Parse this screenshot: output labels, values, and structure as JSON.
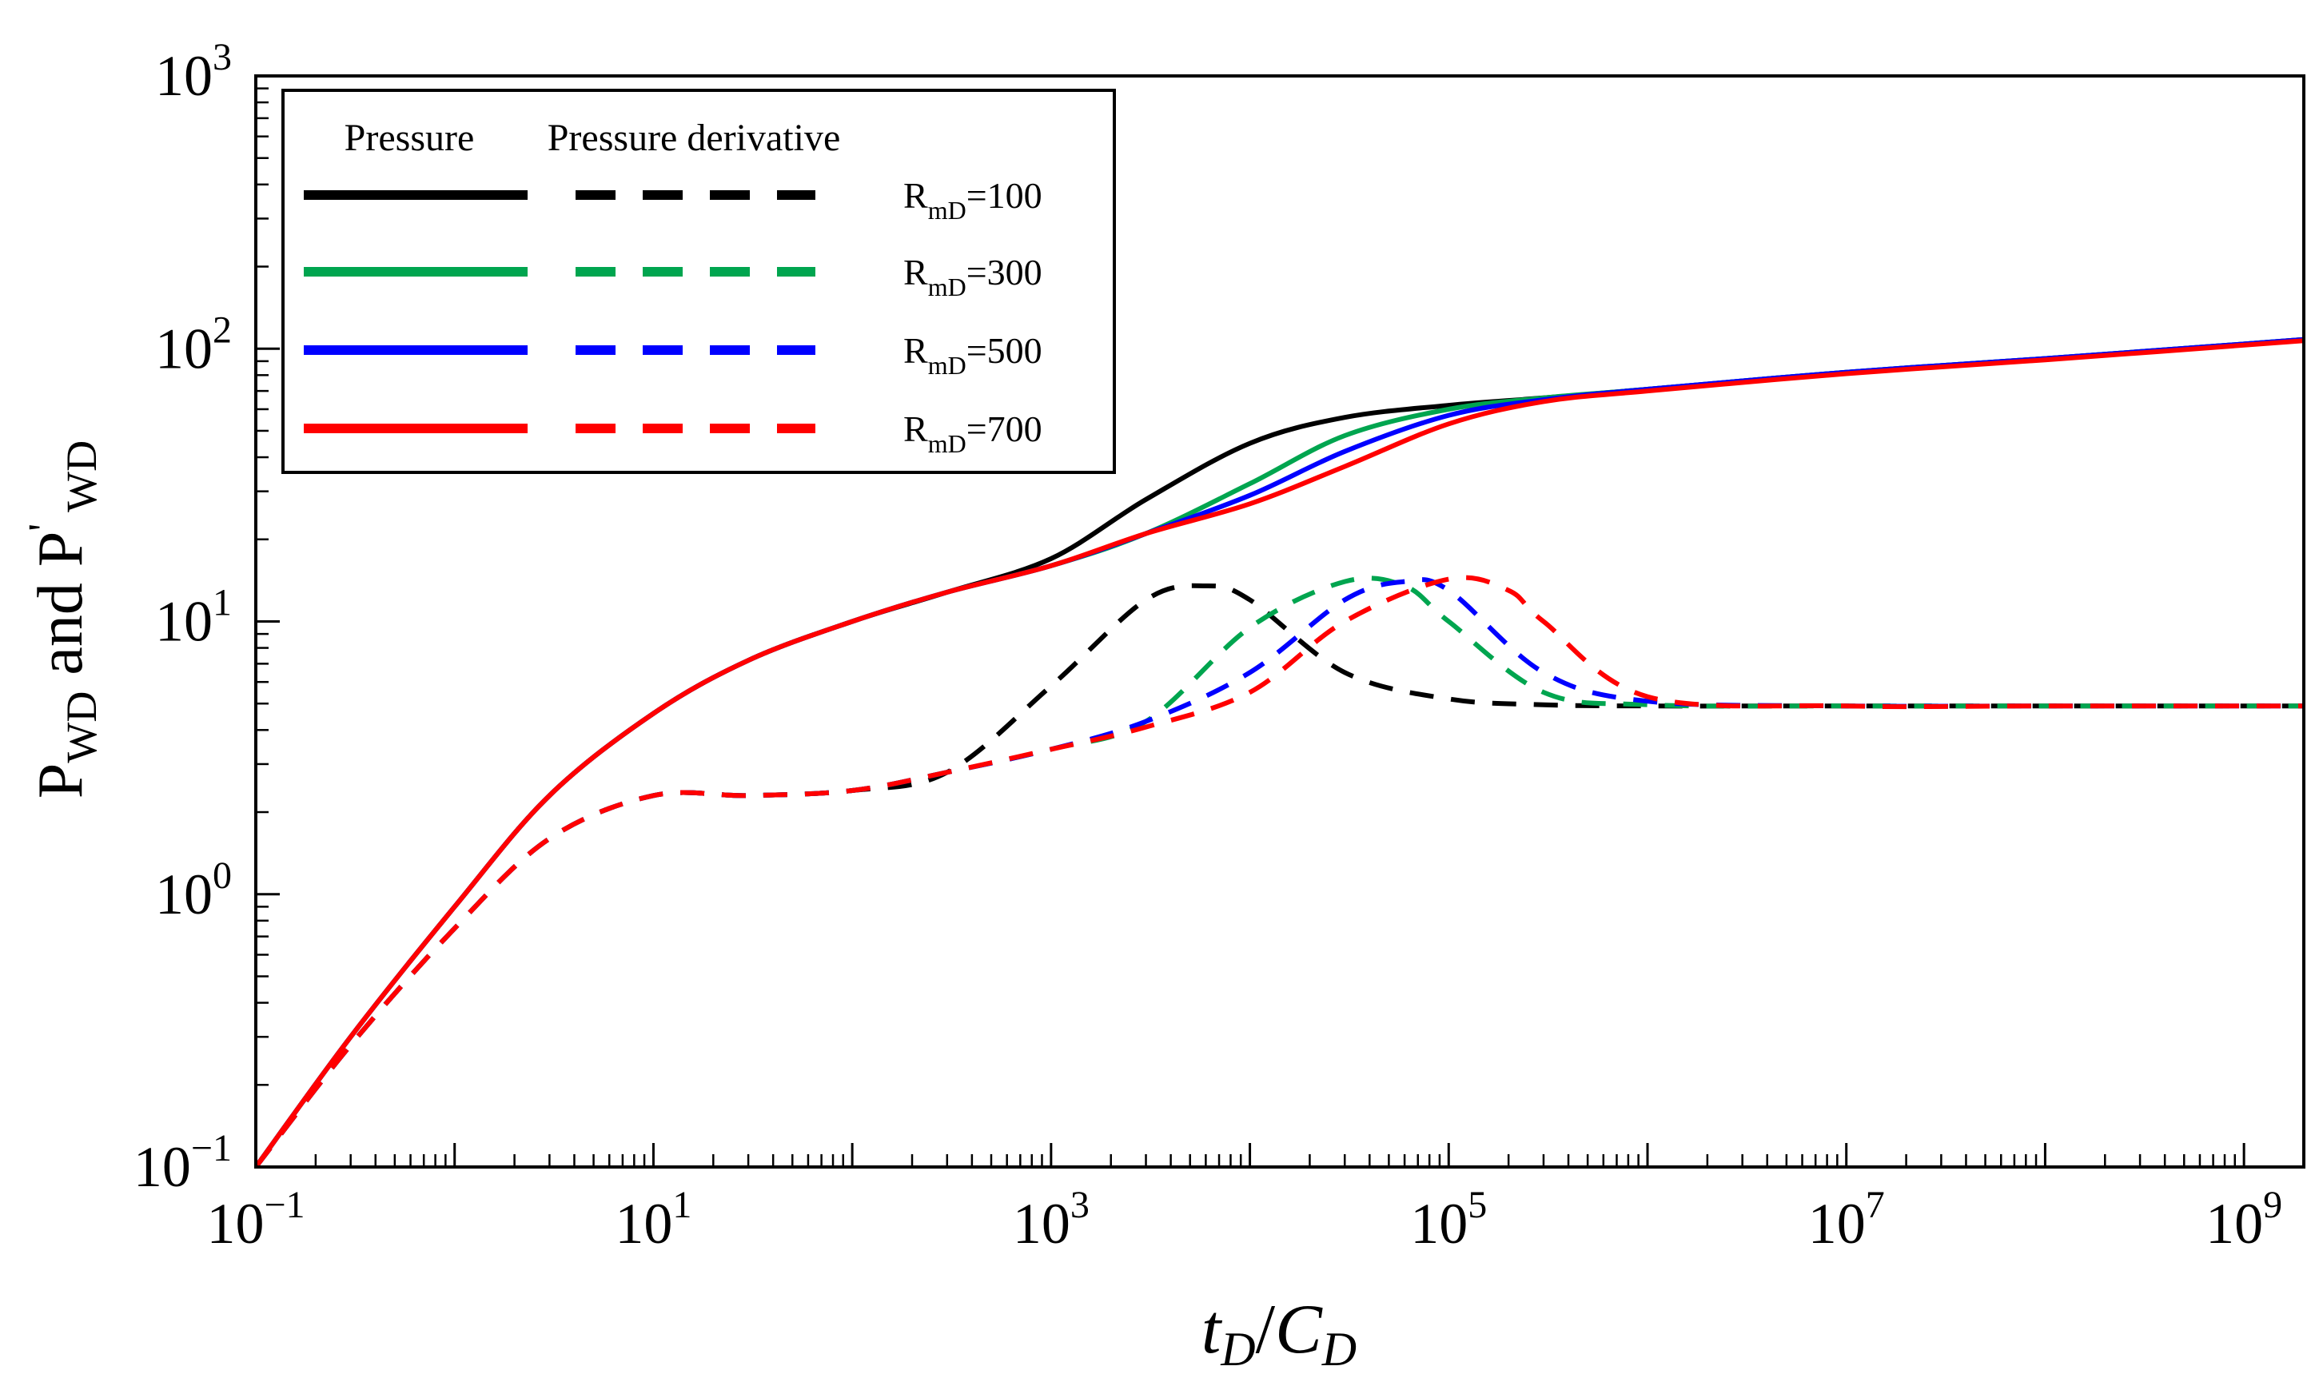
{
  "chart_data": {
    "type": "line",
    "xscale": "log",
    "yscale": "log",
    "xlim": [
      0.1,
      2000000000
    ],
    "ylim": [
      0.1,
      1000
    ],
    "xlabel": {
      "t": "t",
      "tsub": "D",
      "slash": "/",
      "c": "C",
      "csub": "D"
    },
    "ylabel": {
      "p1": "P",
      "p1sub": "WD",
      "mid": " and P",
      "prime": "'",
      "p2sub": "WD"
    },
    "x_ticks": [
      {
        "value": 0.1,
        "base": "10",
        "exp": "−1"
      },
      {
        "value": 10,
        "base": "10",
        "exp": "1"
      },
      {
        "value": 1000,
        "base": "10",
        "exp": "3"
      },
      {
        "value": 100000,
        "base": "10",
        "exp": "5"
      },
      {
        "value": 10000000,
        "base": "10",
        "exp": "7"
      },
      {
        "value": 1000000000,
        "base": "10",
        "exp": "9"
      }
    ],
    "y_ticks": [
      {
        "value": 0.1,
        "base": "10",
        "exp": "−1"
      },
      {
        "value": 1,
        "base": "10",
        "exp": "0"
      },
      {
        "value": 10,
        "base": "10",
        "exp": "1"
      },
      {
        "value": 100,
        "base": "10",
        "exp": "2"
      },
      {
        "value": 1000,
        "base": "10",
        "exp": "3"
      }
    ],
    "legend": {
      "position": "top-left",
      "header_pressure": "Pressure",
      "header_derivative": "Pressure derivative"
    },
    "series": [
      {
        "name": "RmD=100",
        "label_main": "R",
        "label_sub": "mD",
        "label_rest": "=100",
        "color": "#000000",
        "pressure": {
          "x": [
            0.1,
            0.3,
            1,
            3,
            10,
            30,
            100,
            300,
            1000,
            3000,
            10000,
            30000,
            100000,
            300000,
            1000000,
            10000000,
            100000000,
            2000000000
          ],
          "y": [
            0.1,
            0.3,
            0.9,
            2.3,
            4.6,
            7.2,
            10,
            12.8,
            17,
            28,
            45,
            56,
            62,
            66,
            71,
            82,
            92,
            108
          ]
        },
        "derivative": {
          "x": [
            0.1,
            0.3,
            1,
            3,
            10,
            30,
            100,
            300,
            1000,
            3000,
            6000,
            10000,
            30000,
            100000,
            300000,
            1000000,
            10000000,
            100000000,
            2000000000
          ],
          "y": [
            0.1,
            0.28,
            0.75,
            1.6,
            2.3,
            2.3,
            2.4,
            2.8,
            5.8,
            12,
            13.5,
            12,
            6.5,
            5.2,
            4.95,
            4.9,
            4.9,
            4.9,
            4.9
          ]
        }
      },
      {
        "name": "RmD=300",
        "label_main": "R",
        "label_sub": "mD",
        "label_rest": "=300",
        "color": "#00a54f",
        "pressure": {
          "x": [
            0.1,
            0.3,
            1,
            3,
            10,
            30,
            100,
            300,
            1000,
            3000,
            10000,
            30000,
            100000,
            300000,
            1000000,
            10000000,
            100000000,
            2000000000
          ],
          "y": [
            0.1,
            0.3,
            0.9,
            2.3,
            4.6,
            7.2,
            10,
            12.8,
            16,
            21,
            32,
            48,
            60,
            66,
            71,
            82,
            92,
            108
          ]
        },
        "derivative": {
          "x": [
            0.1,
            0.3,
            1,
            3,
            10,
            30,
            100,
            300,
            1000,
            3000,
            10000,
            30000,
            60000,
            100000,
            300000,
            1000000,
            10000000,
            100000000,
            2000000000
          ],
          "y": [
            0.1,
            0.28,
            0.75,
            1.6,
            2.3,
            2.3,
            2.4,
            2.8,
            3.4,
            4.3,
            9.5,
            14,
            13.5,
            10,
            5.5,
            4.95,
            4.9,
            4.9,
            4.9
          ]
        }
      },
      {
        "name": "RmD=500",
        "label_main": "R",
        "label_sub": "mD",
        "label_rest": "=500",
        "color": "#0000ff",
        "pressure": {
          "x": [
            0.1,
            0.3,
            1,
            3,
            10,
            30,
            100,
            300,
            1000,
            3000,
            10000,
            30000,
            100000,
            300000,
            1000000,
            10000000,
            100000000,
            2000000000
          ],
          "y": [
            0.1,
            0.3,
            0.9,
            2.3,
            4.6,
            7.2,
            10,
            12.8,
            16,
            21,
            29,
            42,
            57,
            65,
            71,
            82,
            92,
            108
          ]
        },
        "derivative": {
          "x": [
            0.1,
            0.3,
            1,
            3,
            10,
            30,
            100,
            300,
            1000,
            3000,
            10000,
            30000,
            60000,
            100000,
            300000,
            1000000,
            10000000,
            100000000,
            2000000000
          ],
          "y": [
            0.1,
            0.28,
            0.75,
            1.6,
            2.3,
            2.3,
            2.4,
            2.8,
            3.4,
            4.3,
            6.5,
            12,
            14,
            13,
            6.5,
            5.1,
            4.9,
            4.9,
            4.9
          ]
        }
      },
      {
        "name": "RmD=700",
        "label_main": "R",
        "label_sub": "mD",
        "label_rest": "=700",
        "color": "#ff0000",
        "pressure": {
          "x": [
            0.1,
            0.3,
            1,
            3,
            10,
            30,
            100,
            300,
            1000,
            3000,
            10000,
            30000,
            100000,
            300000,
            1000000,
            10000000,
            100000000,
            2000000000
          ],
          "y": [
            0.1,
            0.3,
            0.9,
            2.3,
            4.6,
            7.2,
            10,
            12.8,
            16,
            21,
            27,
            37,
            53,
            64,
            70,
            81,
            91,
            107
          ]
        },
        "derivative": {
          "x": [
            0.1,
            0.3,
            1,
            3,
            10,
            30,
            100,
            300,
            1000,
            3000,
            10000,
            30000,
            100000,
            200000,
            300000,
            1000000,
            10000000,
            100000000,
            2000000000
          ],
          "y": [
            0.1,
            0.28,
            0.75,
            1.6,
            2.3,
            2.3,
            2.4,
            2.8,
            3.4,
            4.1,
            5.5,
            10,
            14.3,
            13,
            10,
            5.3,
            4.9,
            4.9,
            4.9
          ]
        }
      }
    ]
  }
}
